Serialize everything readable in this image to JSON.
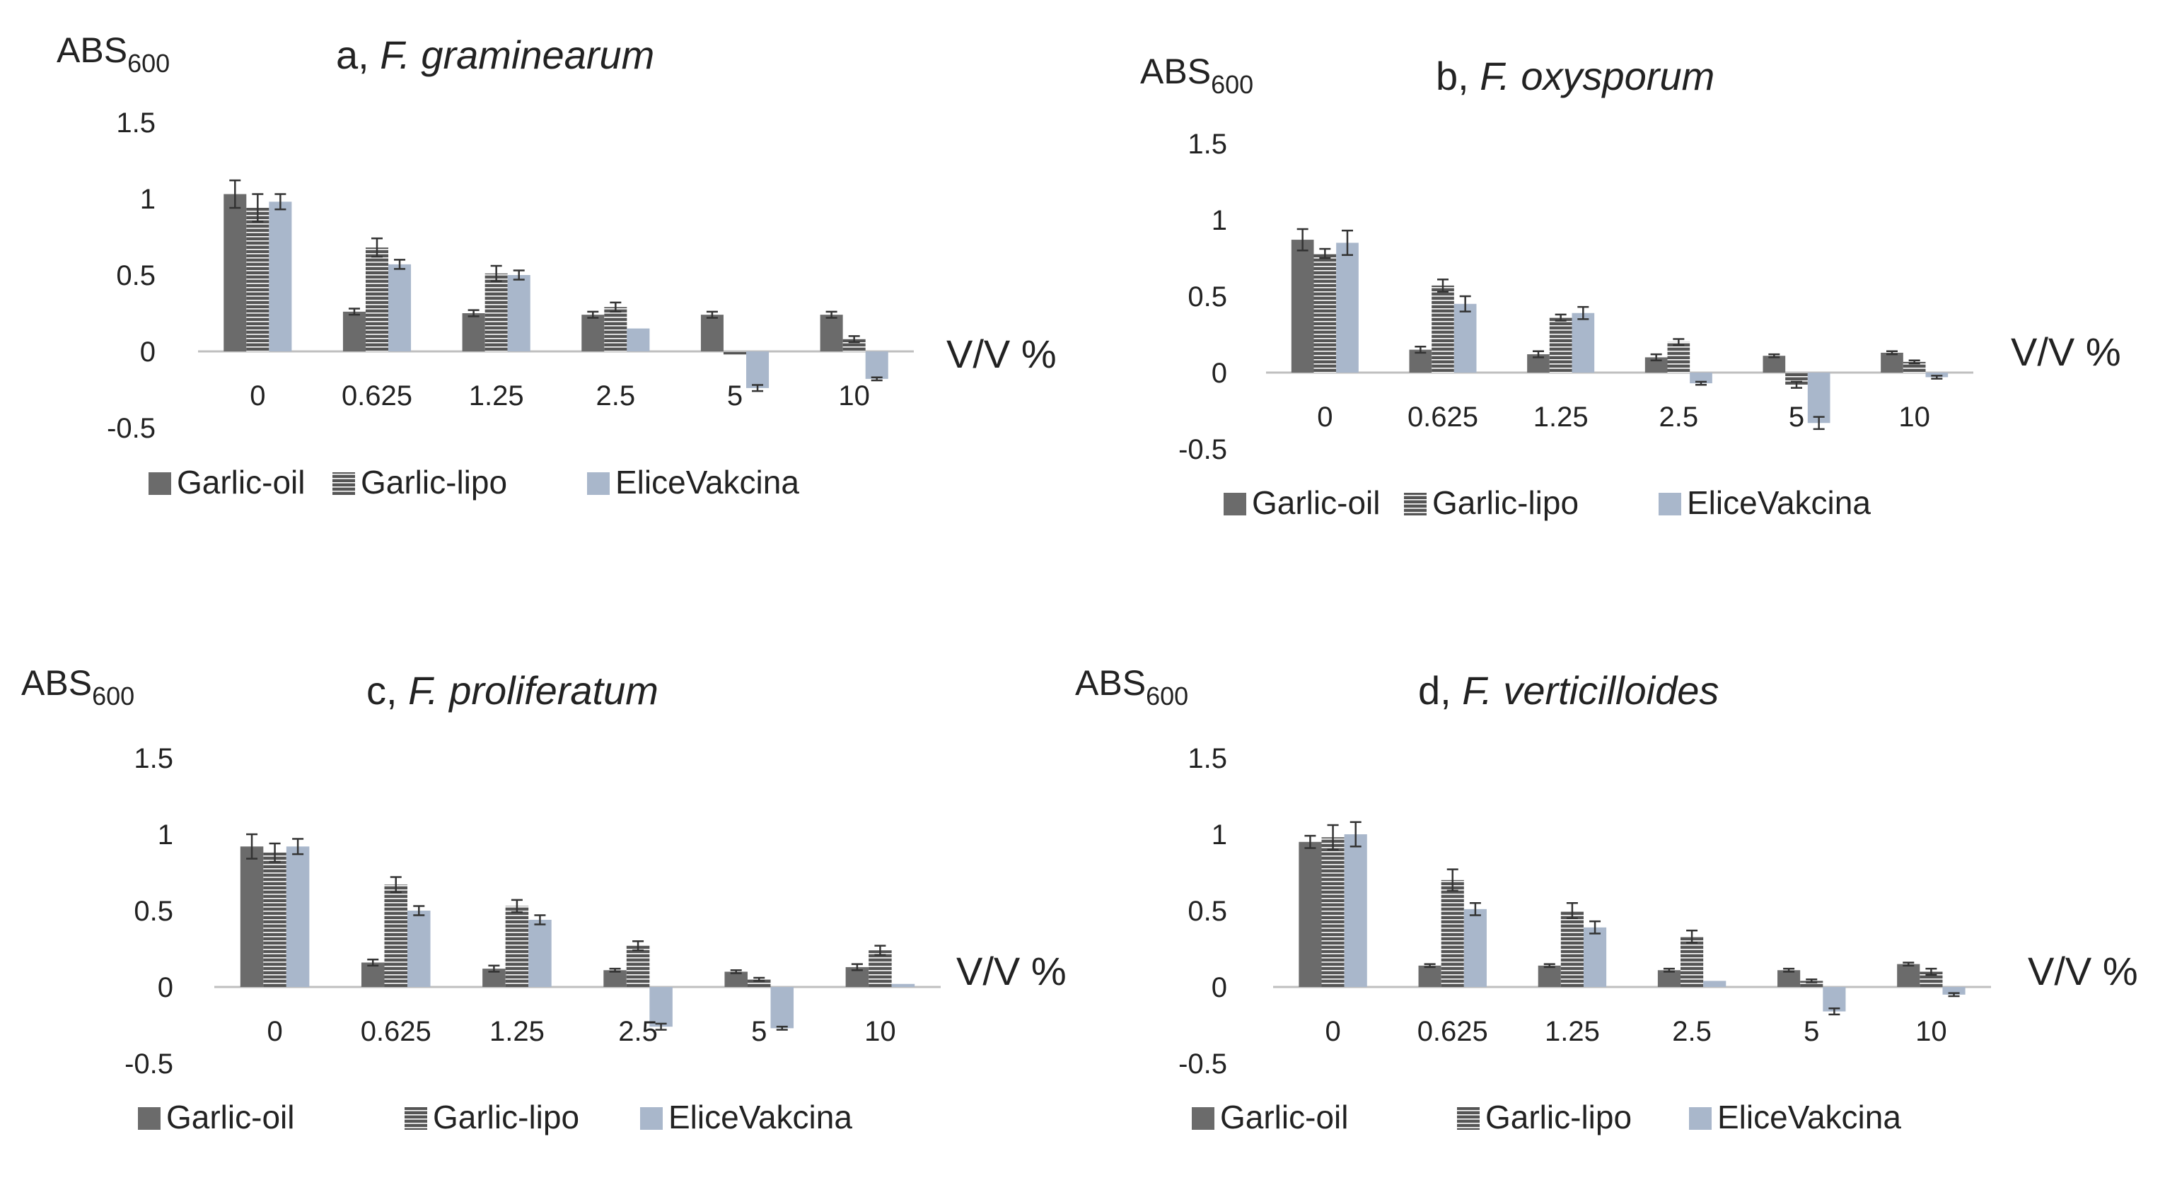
{
  "legend_labels": [
    "Garlic-oil",
    "Garlic-lipo",
    "EliceVakcina"
  ],
  "y_label": "ABS",
  "y_label_sub": "600",
  "x_unit_label": "V/V %",
  "colors": {
    "garlic_oil": "#6b6b6b",
    "garlic_lipo": "#555555",
    "garlic_lipo_stripe": "#ffffff",
    "elicevakcina": "#a9b7cb",
    "axis": "#bfbfbf",
    "text": "#222222"
  },
  "chart_data": [
    {
      "type": "bar",
      "panel": "a",
      "title_prefix": "a, ",
      "title_species": "F. graminearum",
      "categories": [
        "0",
        "0.625",
        "1.25",
        "2.5",
        "5",
        "10"
      ],
      "yticks": [
        "1.5",
        "1",
        "0.5",
        "0",
        "-0.5"
      ],
      "ylim": [
        -0.5,
        1.5
      ],
      "series": [
        {
          "name": "Garlic-oil",
          "values": [
            1.03,
            0.26,
            0.25,
            0.24,
            0.24,
            0.24
          ],
          "errors": [
            0.09,
            0.02,
            0.02,
            0.02,
            0.02,
            0.02
          ]
        },
        {
          "name": "Garlic-lipo",
          "values": [
            0.94,
            0.68,
            0.51,
            0.29,
            -0.02,
            0.08
          ],
          "errors": [
            0.09,
            0.06,
            0.05,
            0.03,
            0.0,
            0.02
          ]
        },
        {
          "name": "EliceVakcina",
          "values": [
            0.98,
            0.57,
            0.5,
            0.15,
            -0.24,
            -0.18
          ],
          "errors": [
            0.05,
            0.03,
            0.03,
            0.0,
            0.02,
            0.01
          ]
        }
      ]
    },
    {
      "type": "bar",
      "panel": "b",
      "title_prefix": "b, ",
      "title_species": "F. oxysporum",
      "categories": [
        "0",
        "0.625",
        "1.25",
        "2.5",
        "5",
        "10"
      ],
      "yticks": [
        "1.5",
        "1",
        "0.5",
        "0",
        "-0.5"
      ],
      "ylim": [
        -0.5,
        1.5
      ],
      "series": [
        {
          "name": "Garlic-oil",
          "values": [
            0.87,
            0.15,
            0.12,
            0.1,
            0.11,
            0.13
          ],
          "errors": [
            0.07,
            0.02,
            0.02,
            0.02,
            0.01,
            0.01
          ]
        },
        {
          "name": "Garlic-lipo",
          "values": [
            0.78,
            0.57,
            0.36,
            0.2,
            -0.08,
            0.07
          ],
          "errors": [
            0.03,
            0.04,
            0.02,
            0.02,
            0.02,
            0.01
          ]
        },
        {
          "name": "EliceVakcina",
          "values": [
            0.85,
            0.45,
            0.39,
            -0.07,
            -0.33,
            -0.03
          ],
          "errors": [
            0.08,
            0.05,
            0.04,
            0.01,
            0.04,
            0.01
          ]
        }
      ]
    },
    {
      "type": "bar",
      "panel": "c",
      "title_prefix": "c, ",
      "title_species": "F. proliferatum",
      "categories": [
        "0",
        "0.625",
        "1.25",
        "2.5",
        "5",
        "10"
      ],
      "yticks": [
        "1.5",
        "1",
        "0.5",
        "0",
        "-0.5"
      ],
      "ylim": [
        -0.5,
        1.5
      ],
      "series": [
        {
          "name": "Garlic-oil",
          "values": [
            0.92,
            0.16,
            0.12,
            0.11,
            0.1,
            0.13
          ],
          "errors": [
            0.08,
            0.02,
            0.02,
            0.01,
            0.01,
            0.02
          ]
        },
        {
          "name": "Garlic-lipo",
          "values": [
            0.88,
            0.67,
            0.53,
            0.27,
            0.05,
            0.24
          ],
          "errors": [
            0.06,
            0.05,
            0.04,
            0.03,
            0.01,
            0.03
          ]
        },
        {
          "name": "EliceVakcina",
          "values": [
            0.92,
            0.5,
            0.44,
            -0.26,
            -0.27,
            0.02
          ],
          "errors": [
            0.05,
            0.03,
            0.03,
            0.02,
            0.01,
            0.0
          ]
        }
      ]
    },
    {
      "type": "bar",
      "panel": "d",
      "title_prefix": "d, ",
      "title_species": "F. verticilloides",
      "categories": [
        "0",
        "0.625",
        "1.25",
        "2.5",
        "5",
        "10"
      ],
      "yticks": [
        "1.5",
        "1",
        "0.5",
        "0",
        "-0.5"
      ],
      "ylim": [
        -0.5,
        1.5
      ],
      "series": [
        {
          "name": "Garlic-oil",
          "values": [
            0.95,
            0.14,
            0.14,
            0.11,
            0.11,
            0.15
          ],
          "errors": [
            0.04,
            0.01,
            0.01,
            0.01,
            0.01,
            0.01
          ]
        },
        {
          "name": "Garlic-lipo",
          "values": [
            0.98,
            0.7,
            0.5,
            0.33,
            0.04,
            0.1
          ],
          "errors": [
            0.08,
            0.07,
            0.05,
            0.04,
            0.01,
            0.02
          ]
        },
        {
          "name": "EliceVakcina",
          "values": [
            1.0,
            0.51,
            0.39,
            0.04,
            -0.16,
            -0.05
          ],
          "errors": [
            0.08,
            0.04,
            0.04,
            0.0,
            0.02,
            0.01
          ]
        }
      ]
    }
  ]
}
